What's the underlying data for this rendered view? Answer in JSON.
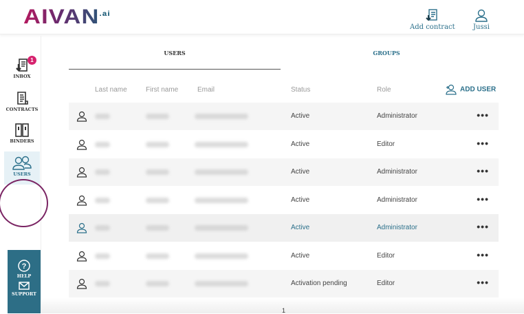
{
  "header": {
    "logo": "AIVAN",
    "logo_suffix": ".ai",
    "add_contract": "Add contract",
    "user": "Jussi"
  },
  "sidebar": {
    "items": [
      {
        "label": "INBOX",
        "badge": "1"
      },
      {
        "label": "CONTRACTS"
      },
      {
        "label": "BINDERS"
      },
      {
        "label": "USERS",
        "active": true
      }
    ],
    "help": "HELP",
    "support": "SUPPORT"
  },
  "tabs": [
    {
      "label": "USERS",
      "active": true
    },
    {
      "label": "GROUPS"
    }
  ],
  "columns": {
    "last_name": "Last name",
    "first_name": "First name",
    "email": "Email",
    "status": "Status",
    "role": "Role"
  },
  "add_user": "ADD USER",
  "rows": [
    {
      "status": "Active",
      "role": "Administrator"
    },
    {
      "status": "Active",
      "role": "Editor"
    },
    {
      "status": "Active",
      "role": "Administrator"
    },
    {
      "status": "Active",
      "role": "Administrator"
    },
    {
      "status": "Active",
      "role": "Administrator",
      "highlighted": true
    },
    {
      "status": "Active",
      "role": "Editor"
    },
    {
      "status": "Activation pending",
      "role": "Editor"
    }
  ],
  "pagination": {
    "page": "1"
  },
  "colors": {
    "accent": "#2a6f8a",
    "badge": "#d6226e",
    "highlight": "#7a2463"
  }
}
